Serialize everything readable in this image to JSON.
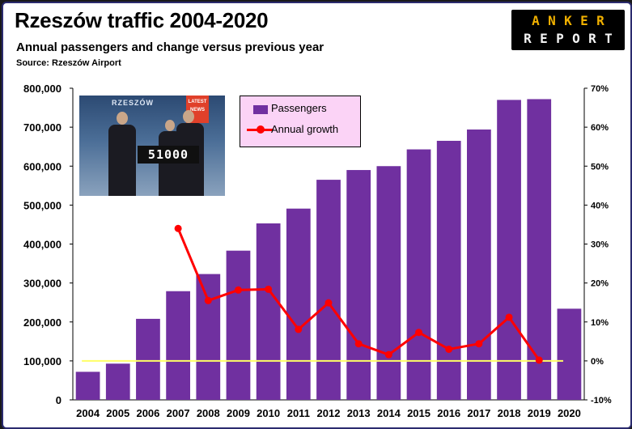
{
  "header": {
    "title": "Rzeszów traffic 2004-2020",
    "subtitle": "Annual passengers and change versus previous year",
    "source": "Source: Rzeszów Airport"
  },
  "logo": {
    "line1": [
      "A",
      "N",
      "K",
      "E",
      "R"
    ],
    "line2": [
      "R",
      "E",
      "P",
      "O",
      "R",
      "T"
    ]
  },
  "photo": {
    "banner": "RZESZÓW",
    "badge": "LATEST NEWS",
    "counter": "51000"
  },
  "legend": {
    "items": [
      "Passengers",
      "Annual growth"
    ]
  },
  "colors": {
    "bar": "#7030a0",
    "line": "#ff0000",
    "zero_line": "#ffff66",
    "legend_bg": "#fbd3f6"
  },
  "chart_data": {
    "type": "bar",
    "categories": [
      "2004",
      "2005",
      "2006",
      "2007",
      "2008",
      "2009",
      "2010",
      "2011",
      "2012",
      "2013",
      "2014",
      "2015",
      "2016",
      "2017",
      "2018",
      "2019",
      "2020"
    ],
    "series": [
      {
        "name": "Passengers",
        "type": "bar",
        "axis": "left",
        "values": [
          72000,
          93000,
          208000,
          279000,
          323000,
          383000,
          453000,
          491000,
          565000,
          590000,
          600000,
          643000,
          665000,
          694000,
          770000,
          772000,
          234000
        ]
      },
      {
        "name": "Annual growth",
        "type": "line",
        "axis": "right",
        "values": [
          null,
          null,
          null,
          34,
          15.5,
          18.2,
          18.4,
          8.1,
          14.9,
          4.4,
          1.6,
          7.3,
          3.0,
          4.4,
          11.2,
          0.2,
          null
        ]
      }
    ],
    "y_left": {
      "min": 0,
      "max": 800000,
      "ticks": [
        0,
        100000,
        200000,
        300000,
        400000,
        500000,
        600000,
        700000,
        800000
      ],
      "tick_labels": [
        "0",
        "100,000",
        "200,000",
        "300,000",
        "400,000",
        "500,000",
        "600,000",
        "700,000",
        "800,000"
      ]
    },
    "y_right": {
      "min": -10,
      "max": 70,
      "ticks": [
        -10,
        0,
        10,
        20,
        30,
        40,
        50,
        60,
        70
      ],
      "tick_labels": [
        "-10%",
        "0%",
        "10%",
        "20%",
        "30%",
        "40%",
        "50%",
        "60%",
        "70%"
      ]
    },
    "reference_line": {
      "axis": "right",
      "value": 0
    },
    "grid": false,
    "legend_position": "top-center"
  }
}
